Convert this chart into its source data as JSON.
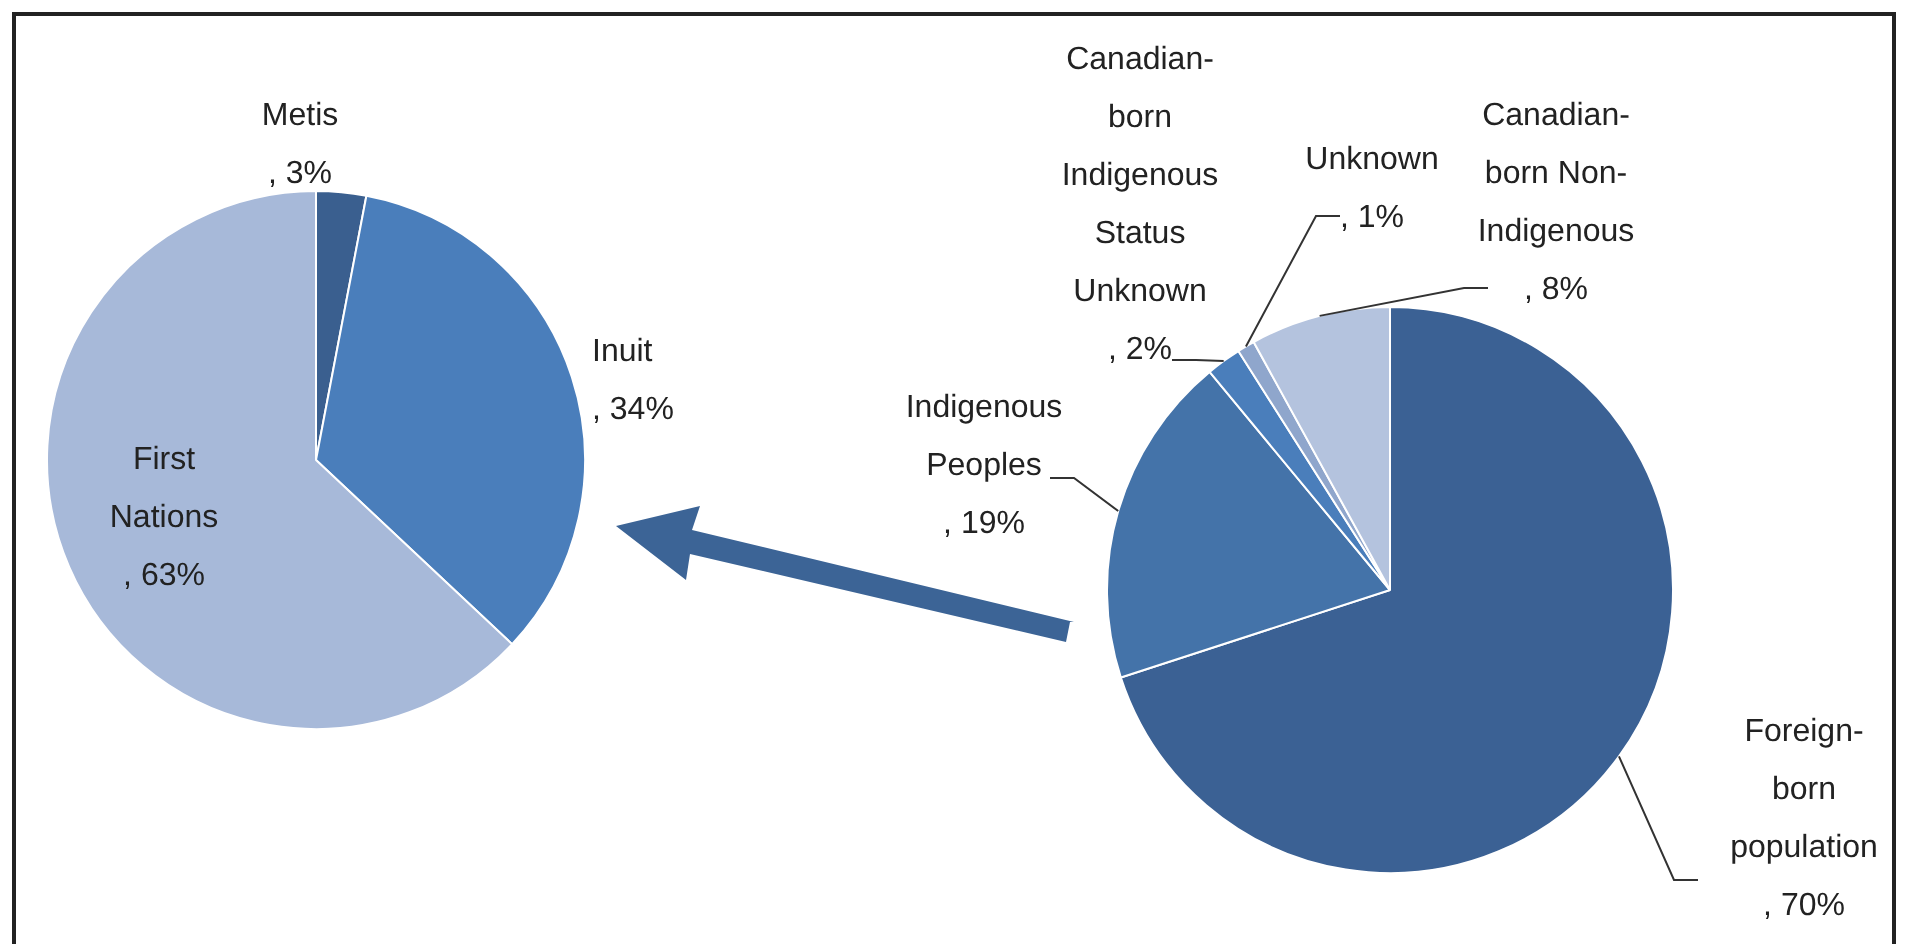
{
  "chart_data": [
    {
      "type": "pie",
      "categories": [
        "Metis",
        "Inuit",
        "First Nations"
      ],
      "values": [
        3,
        34,
        63
      ],
      "colors": [
        "#3a5f8f",
        "#4a7ebb",
        "#a7b9d9"
      ],
      "value_labels": [
        ", 3%",
        ", 34%",
        ", 63%"
      ],
      "legend": false
    },
    {
      "type": "pie",
      "categories": [
        "Foreign-born population",
        "Indigenous Peoples",
        "Canadian-born Indigenous Status Unknown",
        "Unknown",
        "Canadian-born Non-Indigenous"
      ],
      "values": [
        70,
        19,
        2,
        1,
        8
      ],
      "colors": [
        "#3b6194",
        "#4473a9",
        "#4a7ebb",
        "#8fa6cc",
        "#b4c3de"
      ],
      "value_labels": [
        ", 70%",
        ", 19%",
        ", 2%",
        ", 1%",
        ", 8%"
      ],
      "legend": false
    }
  ]
}
